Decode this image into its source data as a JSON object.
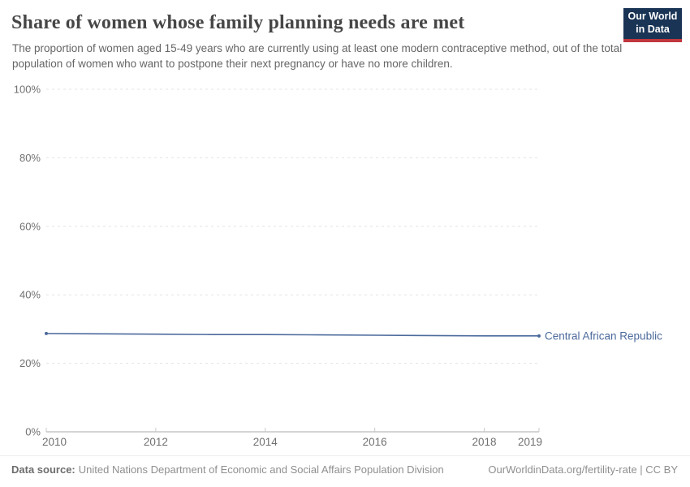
{
  "logo": {
    "line1": "Our World",
    "line2": "in Data",
    "bg_color": "#1a3455",
    "accent_color": "#c0373d"
  },
  "chart_data": {
    "type": "line",
    "title": "Share of women whose family planning needs are met",
    "subtitle": "The proportion of women aged 15-49 years who are currently using at least one modern contraceptive method, out of the total population of women who want to postpone their next pregnancy or have no more children.",
    "x": [
      2010,
      2011,
      2012,
      2013,
      2014,
      2015,
      2016,
      2017,
      2018,
      2019
    ],
    "series": [
      {
        "name": "Central African Republic",
        "color": "#4c6a9c",
        "values": [
          28.7,
          28.6,
          28.5,
          28.4,
          28.4,
          28.3,
          28.2,
          28.1,
          28.0,
          28.0
        ]
      }
    ],
    "xlabel": "",
    "ylabel": "",
    "ylim": [
      0,
      100
    ],
    "yticks": [
      0,
      20,
      40,
      60,
      80,
      100
    ],
    "ytick_labels": [
      "0%",
      "20%",
      "40%",
      "60%",
      "80%",
      "100%"
    ],
    "xticks": [
      2010,
      2012,
      2014,
      2016,
      2018,
      2019
    ],
    "grid": "horizontal-dashed",
    "legend_position": "right-of-line-end",
    "grid_color": "#e3e3e3",
    "axis_color": "#a8a8a8",
    "tick_color": "#c9c9c9",
    "tick_label_color": "#707070"
  },
  "footer": {
    "source_label": "Data source:",
    "source_text": "United Nations Department of Economic and Social Affairs Population Division",
    "right_text": "OurWorldinData.org/fertility-rate | CC BY"
  }
}
